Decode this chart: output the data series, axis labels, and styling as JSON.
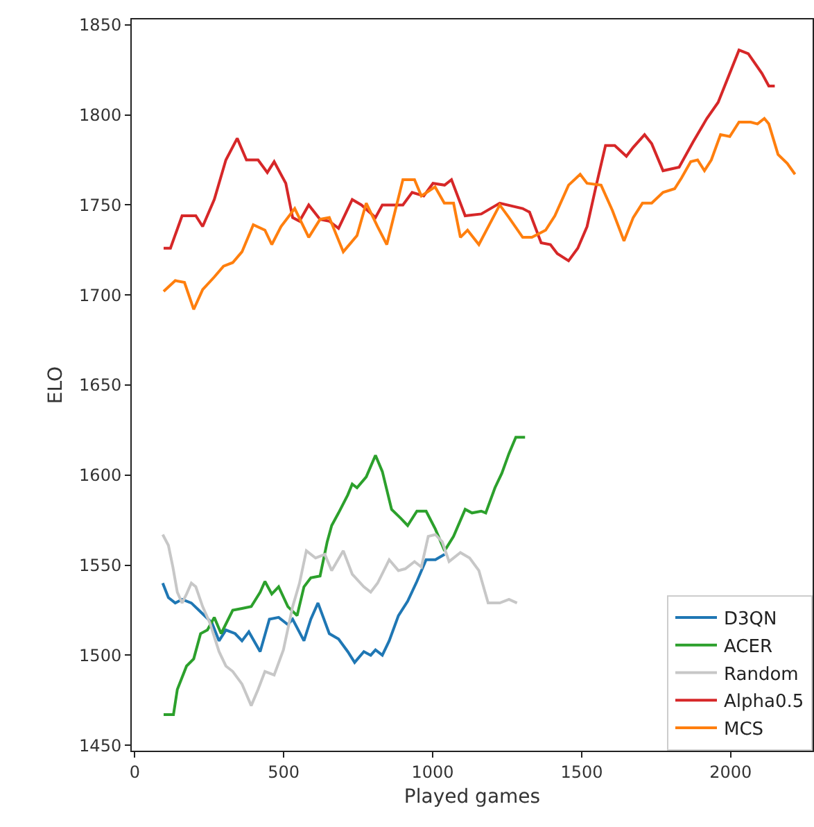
{
  "chart_data": {
    "type": "line",
    "xlabel": "Played games",
    "ylabel": "ELO",
    "xlim": [
      -10,
      2275
    ],
    "ylim": [
      1447,
      1853
    ],
    "xticks": [
      0,
      500,
      1000,
      1500,
      2000
    ],
    "yticks": [
      1450,
      1500,
      1550,
      1600,
      1650,
      1700,
      1750,
      1800,
      1850
    ],
    "grid": false,
    "legend": "bottom right",
    "marker": "none",
    "line_style": "solid",
    "series": [
      {
        "name": "D3QN",
        "color": "#1f77b4",
        "x": [
          94,
          113,
          136,
          159,
          190,
          228,
          259,
          283,
          306,
          337,
          360,
          383,
          421,
          452,
          483,
          514,
          530,
          568,
          591,
          615,
          653,
          684,
          715,
          738,
          769,
          792,
          808,
          831,
          854,
          885,
          916,
          947,
          978,
          1009,
          1040
        ],
        "values": [
          1540,
          1532,
          1529,
          1531,
          1529,
          1523,
          1518,
          1508,
          1514,
          1512,
          1508,
          1513,
          1502,
          1520,
          1521,
          1517,
          1520,
          1508,
          1520,
          1529,
          1512,
          1509,
          1502,
          1496,
          1502,
          1500,
          1503,
          1500,
          1508,
          1522,
          1530,
          1541,
          1553,
          1553,
          1556
        ]
      },
      {
        "name": "ACER",
        "color": "#2ca02c",
        "x": [
          97,
          130,
          143,
          174,
          198,
          221,
          244,
          267,
          290,
          329,
          360,
          391,
          421,
          437,
          460,
          483,
          514,
          545,
          568,
          591,
          622,
          646,
          661,
          684,
          715,
          730,
          746,
          777,
          808,
          831,
          862,
          893,
          916,
          947,
          978,
          1009,
          1040,
          1070,
          1109,
          1132,
          1163,
          1178,
          1209,
          1232,
          1256,
          1279,
          1310
        ],
        "values": [
          1467,
          1467,
          1481,
          1494,
          1498,
          1512,
          1514,
          1521,
          1512,
          1525,
          1526,
          1527,
          1535,
          1541,
          1534,
          1538,
          1527,
          1522,
          1538,
          1543,
          1544,
          1563,
          1572,
          1579,
          1589,
          1595,
          1593,
          1599,
          1611,
          1602,
          1581,
          1576,
          1572,
          1580,
          1580,
          1570,
          1558,
          1566,
          1581,
          1579,
          1580,
          1579,
          1593,
          1601,
          1612,
          1621,
          1621
        ]
      },
      {
        "name": "Random",
        "color": "#c7c7c7",
        "x": [
          94,
          113,
          128,
          143,
          159,
          174,
          190,
          205,
          228,
          252,
          283,
          306,
          329,
          360,
          391,
          414,
          437,
          468,
          499,
          530,
          553,
          576,
          607,
          638,
          661,
          700,
          730,
          769,
          792,
          815,
          854,
          885,
          908,
          939,
          962,
          985,
          1009,
          1032,
          1055,
          1093,
          1124,
          1155,
          1186,
          1225,
          1256,
          1283
        ],
        "values": [
          1567,
          1561,
          1549,
          1535,
          1529,
          1534,
          1540,
          1538,
          1527,
          1518,
          1502,
          1494,
          1491,
          1484,
          1472,
          1481,
          1491,
          1489,
          1503,
          1527,
          1540,
          1558,
          1554,
          1556,
          1547,
          1558,
          1545,
          1538,
          1535,
          1540,
          1553,
          1547,
          1548,
          1552,
          1549,
          1566,
          1567,
          1563,
          1552,
          1557,
          1554,
          1547,
          1529,
          1529,
          1531,
          1529
        ]
      },
      {
        "name": "Alpha0.5",
        "color": "#d62728",
        "x": [
          97,
          120,
          159,
          205,
          228,
          267,
          306,
          344,
          375,
          414,
          445,
          468,
          507,
          530,
          553,
          584,
          622,
          653,
          684,
          730,
          761,
          808,
          831,
          900,
          931,
          970,
          1001,
          1040,
          1063,
          1109,
          1163,
          1225,
          1302,
          1325,
          1364,
          1395,
          1418,
          1456,
          1487,
          1518,
          1549,
          1580,
          1611,
          1650,
          1673,
          1711,
          1735,
          1773,
          1827,
          1874,
          1920,
          1958,
          2028,
          2059,
          2105,
          2128,
          2148
        ],
        "values": [
          1726,
          1726,
          1744,
          1744,
          1738,
          1753,
          1775,
          1787,
          1775,
          1775,
          1768,
          1774,
          1762,
          1743,
          1741,
          1750,
          1742,
          1741,
          1737,
          1753,
          1750,
          1743,
          1750,
          1750,
          1757,
          1755,
          1762,
          1761,
          1764,
          1744,
          1745,
          1751,
          1748,
          1746,
          1729,
          1728,
          1723,
          1719,
          1726,
          1738,
          1761,
          1783,
          1783,
          1777,
          1782,
          1789,
          1784,
          1769,
          1771,
          1785,
          1798,
          1807,
          1836,
          1834,
          1823,
          1816,
          1816
        ]
      },
      {
        "name": "MCS",
        "color": "#ff7f0e",
        "x": [
          97,
          136,
          167,
          198,
          228,
          267,
          298,
          329,
          360,
          398,
          437,
          460,
          491,
          537,
          584,
          622,
          653,
          700,
          746,
          777,
          815,
          846,
          900,
          939,
          962,
          1008,
          1039,
          1070,
          1093,
          1117,
          1155,
          1225,
          1256,
          1302,
          1333,
          1379,
          1410,
          1456,
          1495,
          1518,
          1565,
          1603,
          1642,
          1673,
          1704,
          1735,
          1773,
          1812,
          1835,
          1866,
          1889,
          1912,
          1935,
          1966,
          1997,
          2028,
          2067,
          2090,
          2113,
          2128,
          2159,
          2190,
          2216
        ],
        "values": [
          1702,
          1708,
          1707,
          1692,
          1703,
          1710,
          1716,
          1718,
          1724,
          1739,
          1736,
          1728,
          1738,
          1748,
          1732,
          1742,
          1743,
          1724,
          1733,
          1751,
          1738,
          1728,
          1764,
          1764,
          1755,
          1760,
          1751,
          1751,
          1732,
          1736,
          1728,
          1750,
          1743,
          1732,
          1732,
          1736,
          1744,
          1761,
          1767,
          1762,
          1761,
          1747,
          1730,
          1743,
          1751,
          1751,
          1757,
          1759,
          1765,
          1774,
          1775,
          1769,
          1775,
          1789,
          1788,
          1796,
          1796,
          1795,
          1798,
          1795,
          1778,
          1773,
          1767
        ]
      }
    ]
  }
}
